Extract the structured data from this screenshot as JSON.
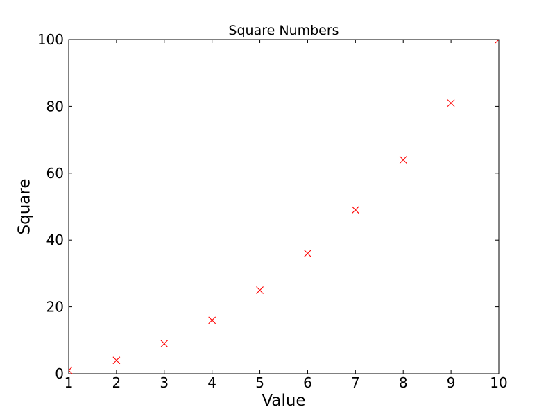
{
  "chart_data": {
    "type": "scatter",
    "title": "Square Numbers",
    "xlabel": "Value",
    "ylabel": "Square",
    "x": [
      1,
      2,
      3,
      4,
      5,
      6,
      7,
      8,
      9,
      10
    ],
    "y": [
      1,
      4,
      9,
      16,
      25,
      36,
      49,
      64,
      81,
      100
    ],
    "marker": "x",
    "marker_color": "#ff0000",
    "marker_size": 10,
    "xlim": [
      1,
      10
    ],
    "ylim": [
      0,
      100
    ],
    "xticks": [
      1,
      2,
      3,
      4,
      5,
      6,
      7,
      8,
      9,
      10
    ],
    "yticks": [
      0,
      20,
      40,
      60,
      80,
      100
    ],
    "grid": false,
    "legend": "none",
    "axis_color": "#000000",
    "background_color": "#ffffff",
    "tick_direction": "in"
  }
}
